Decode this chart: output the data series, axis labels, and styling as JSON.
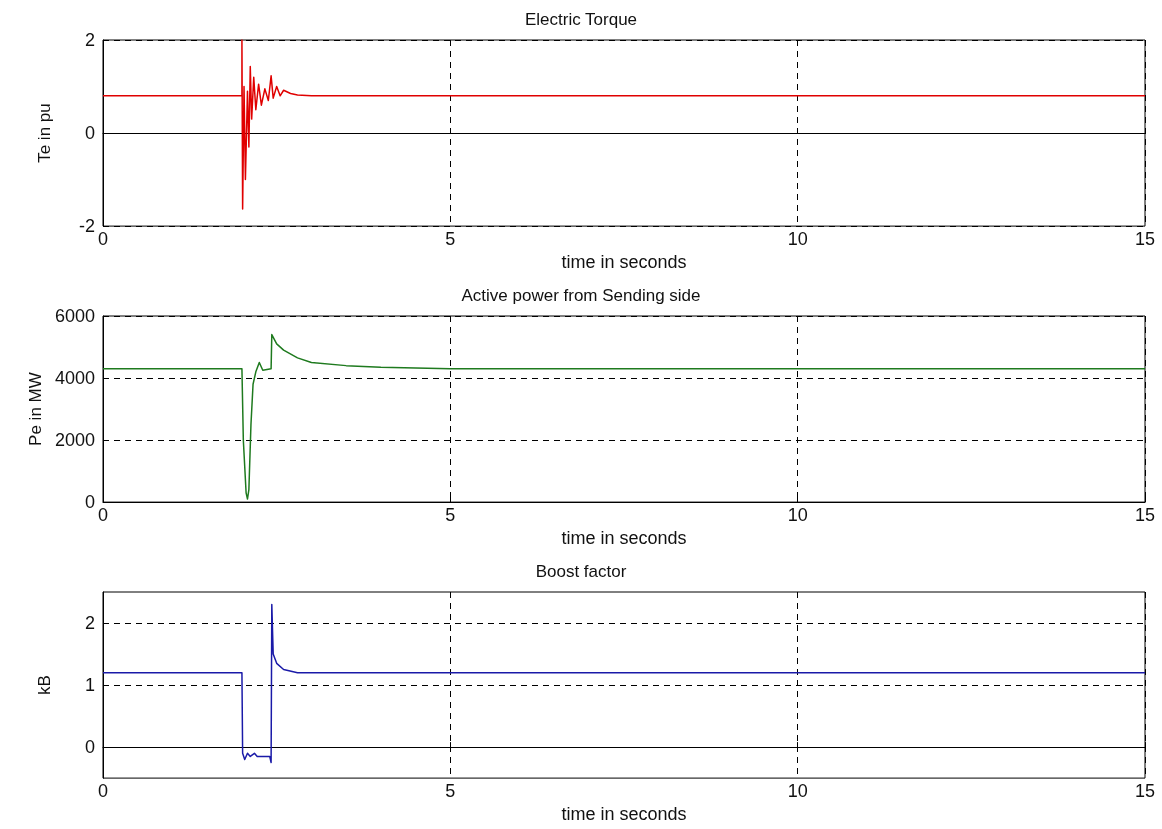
{
  "chart_data": [
    {
      "type": "line",
      "title": "Electric Torque",
      "xlabel": "time in seconds",
      "ylabel": "Te in pu",
      "xlim": [
        0,
        15
      ],
      "xticks": [
        0,
        5,
        10,
        15
      ],
      "ylim": [
        -2,
        2
      ],
      "yticks": [
        -2,
        0,
        2
      ],
      "grid": true,
      "series": [
        {
          "color": "#e00000",
          "x": [
            0,
            2.0,
            2.0,
            2.01,
            2.03,
            2.05,
            2.08,
            2.1,
            2.12,
            2.14,
            2.17,
            2.2,
            2.24,
            2.28,
            2.33,
            2.38,
            2.42,
            2.45,
            2.5,
            2.55,
            2.6,
            2.7,
            2.8,
            3,
            15
          ],
          "values": [
            0.8,
            0.8,
            2.0,
            -1.63,
            1.0,
            -1.0,
            0.9,
            -0.3,
            1.43,
            0.3,
            1.2,
            0.5,
            1.05,
            0.6,
            0.95,
            0.7,
            1.23,
            0.75,
            1.0,
            0.8,
            0.92,
            0.85,
            0.82,
            0.8,
            0.8
          ]
        }
      ]
    },
    {
      "type": "line",
      "title": "Active power from Sending side",
      "xlabel": "time in seconds",
      "ylabel": "Pe in MW",
      "xlim": [
        0,
        15
      ],
      "xticks": [
        0,
        5,
        10,
        15
      ],
      "ylim": [
        0,
        6000
      ],
      "yticks": [
        0,
        2000,
        4000,
        6000
      ],
      "grid": true,
      "series": [
        {
          "color": "#1e7a1e",
          "x": [
            0,
            2.0,
            2.02,
            2.06,
            2.08,
            2.1,
            2.13,
            2.16,
            2.2,
            2.25,
            2.3,
            2.42,
            2.43,
            2.5,
            2.6,
            2.8,
            3,
            3.5,
            4,
            5,
            15
          ],
          "values": [
            4300,
            4300,
            2000,
            300,
            100,
            400,
            2500,
            3800,
            4200,
            4500,
            4250,
            4300,
            5400,
            5100,
            4900,
            4650,
            4500,
            4400,
            4350,
            4300,
            4300
          ]
        }
      ]
    },
    {
      "type": "line",
      "title": "Boost factor",
      "xlabel": "time in seconds",
      "ylabel": "kB",
      "xlim": [
        0,
        15
      ],
      "xticks": [
        0,
        5,
        10,
        15
      ],
      "ylim": [
        -0.5,
        2.5
      ],
      "yticks": [
        0,
        1,
        2
      ],
      "grid": true,
      "series": [
        {
          "color": "#1a1aa8",
          "x": [
            0,
            2.0,
            2.01,
            2.04,
            2.08,
            2.12,
            2.18,
            2.22,
            2.4,
            2.42,
            2.43,
            2.45,
            2.5,
            2.6,
            2.8,
            15
          ],
          "values": [
            1.2,
            1.2,
            -0.1,
            -0.2,
            -0.1,
            -0.15,
            -0.1,
            -0.15,
            -0.15,
            -0.25,
            2.3,
            1.5,
            1.35,
            1.25,
            1.2,
            1.2
          ]
        }
      ]
    }
  ]
}
